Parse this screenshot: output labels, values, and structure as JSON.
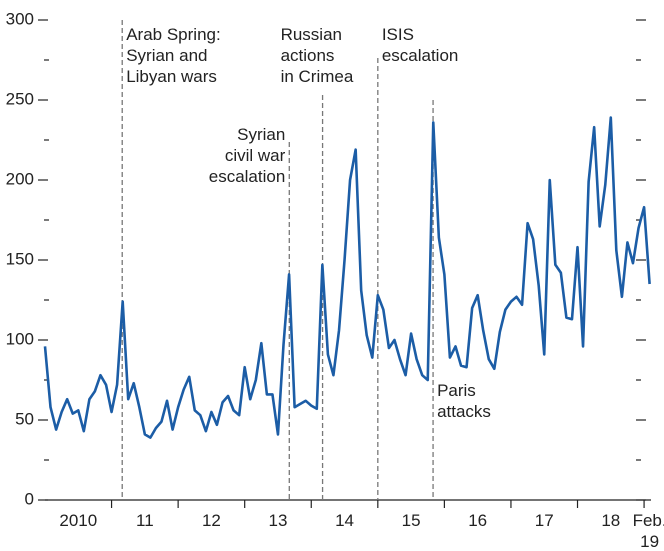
{
  "chart_data": {
    "type": "line",
    "x": [
      2010.0,
      2010.083,
      2010.167,
      2010.25,
      2010.333,
      2010.417,
      2010.5,
      2010.583,
      2010.667,
      2010.75,
      2010.833,
      2010.917,
      2011.0,
      2011.083,
      2011.167,
      2011.25,
      2011.333,
      2011.417,
      2011.5,
      2011.583,
      2011.667,
      2011.75,
      2011.833,
      2011.917,
      2012.0,
      2012.083,
      2012.167,
      2012.25,
      2012.333,
      2012.417,
      2012.5,
      2012.583,
      2012.667,
      2012.75,
      2012.833,
      2012.917,
      2013.0,
      2013.083,
      2013.167,
      2013.25,
      2013.333,
      2013.417,
      2013.5,
      2013.583,
      2013.667,
      2013.75,
      2013.833,
      2013.917,
      2014.0,
      2014.083,
      2014.167,
      2014.25,
      2014.333,
      2014.417,
      2014.5,
      2014.583,
      2014.667,
      2014.75,
      2014.833,
      2014.917,
      2015.0,
      2015.083,
      2015.167,
      2015.25,
      2015.333,
      2015.417,
      2015.5,
      2015.583,
      2015.667,
      2015.75,
      2015.833,
      2015.917,
      2016.0,
      2016.083,
      2016.167,
      2016.25,
      2016.333,
      2016.417,
      2016.5,
      2016.583,
      2016.667,
      2016.75,
      2016.833,
      2016.917,
      2017.0,
      2017.083,
      2017.167,
      2017.25,
      2017.333,
      2017.417,
      2017.5,
      2017.583,
      2017.667,
      2017.75,
      2017.833,
      2017.917,
      2018.0,
      2018.083,
      2018.167,
      2018.25,
      2018.333,
      2018.417,
      2018.5,
      2018.583,
      2018.667,
      2018.75,
      2018.833,
      2018.917,
      2019.0,
      2019.083
    ],
    "values": [
      96,
      58,
      44,
      55,
      63,
      54,
      56,
      43,
      63,
      68,
      78,
      72,
      55,
      72,
      124,
      63,
      73,
      58,
      41,
      39,
      45,
      49,
      62,
      44,
      58,
      69,
      77,
      56,
      53,
      43,
      55,
      47,
      61,
      65,
      56,
      53,
      83,
      63,
      75,
      98,
      66,
      66,
      41,
      97,
      141,
      58,
      60,
      62,
      59,
      57,
      147,
      91,
      78,
      106,
      150,
      200,
      219,
      131,
      103,
      89,
      128,
      119,
      95,
      100,
      88,
      78,
      104,
      88,
      78,
      75,
      236,
      164,
      141,
      89,
      96,
      84,
      83,
      120,
      128,
      106,
      88,
      82,
      105,
      119,
      124,
      127,
      122,
      173,
      163,
      134,
      91,
      200,
      147,
      142,
      114,
      113,
      158,
      96,
      199,
      233,
      171,
      197,
      239,
      156,
      127,
      161,
      148,
      170,
      183,
      135
    ],
    "color": "#1c5da6",
    "xlim": [
      2010.0,
      2019.083
    ],
    "ylim": [
      0,
      300
    ],
    "yticks": [
      0,
      50,
      100,
      150,
      200,
      250,
      300
    ],
    "yminor": [
      25,
      75,
      125,
      175,
      225,
      275
    ],
    "xticks": [
      {
        "value": 2010.5,
        "label": "2010"
      },
      {
        "value": 2011.5,
        "label": "11"
      },
      {
        "value": 2012.5,
        "label": "12"
      },
      {
        "value": 2013.5,
        "label": "13"
      },
      {
        "value": 2014.5,
        "label": "14"
      },
      {
        "value": 2015.5,
        "label": "15"
      },
      {
        "value": 2016.5,
        "label": "16"
      },
      {
        "value": 2017.5,
        "label": "17"
      },
      {
        "value": 2018.5,
        "label": "18"
      },
      {
        "value": 2019.083,
        "label": "Feb.\n19"
      }
    ],
    "xminor": [
      2011,
      2012,
      2013,
      2014,
      2015,
      2016,
      2017,
      2018,
      2019
    ],
    "annotations": [
      {
        "text": "Arab Spring:\nSyrian and\nLibyan wars",
        "x": 2011.16
      },
      {
        "text": "Syrian\ncivil war\nescalation",
        "x": 2013.67
      },
      {
        "text": "Russian\nactions\nin Crimea",
        "x": 2014.17
      },
      {
        "text": "ISIS\nescalation",
        "x": 2015.0
      },
      {
        "text": "Paris\nattacks",
        "x": 2015.83
      }
    ]
  }
}
